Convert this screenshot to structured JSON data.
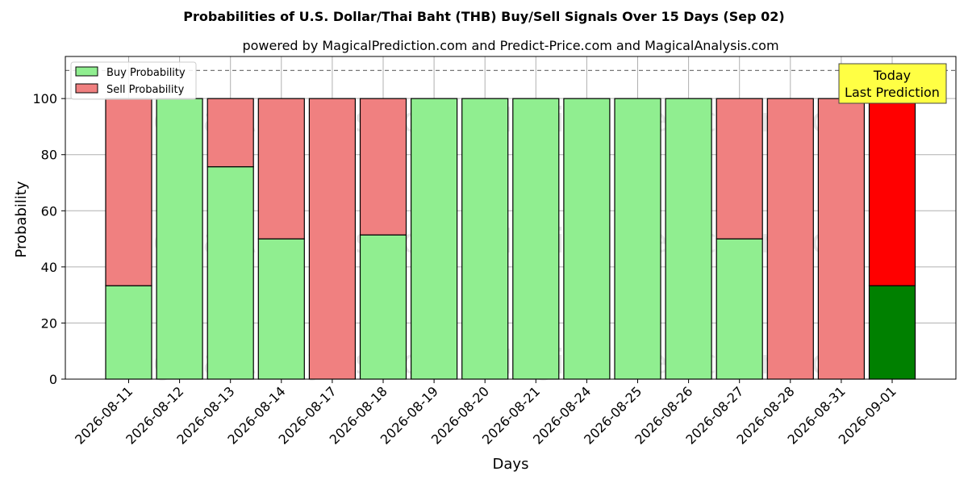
{
  "chart_data": {
    "type": "bar",
    "stacked": true,
    "title": "Probabilities of U.S. Dollar/Thai Baht (THB) Buy/Sell Signals Over 15 Days (Sep 02)",
    "subtitle": "powered by MagicalPrediction.com and Predict-Price.com and MagicalAnalysis.com",
    "xlabel": "Days",
    "ylabel": "Probability",
    "ylim": [
      0,
      115
    ],
    "yticks": [
      0,
      20,
      40,
      60,
      80,
      100
    ],
    "reference_line": 110,
    "grid": true,
    "legend_position": "top-left",
    "categories": [
      "2026-08-11",
      "2026-08-12",
      "2026-08-13",
      "2026-08-14",
      "2026-08-17",
      "2026-08-18",
      "2026-08-19",
      "2026-08-20",
      "2026-08-21",
      "2026-08-24",
      "2026-08-25",
      "2026-08-26",
      "2026-08-27",
      "2026-08-28",
      "2026-08-31",
      "2026-09-01"
    ],
    "series": [
      {
        "name": "Buy Probability",
        "color": "#90ee90",
        "values": [
          33.3,
          100,
          75.7,
          50,
          0,
          51.4,
          100,
          100,
          100,
          100,
          100,
          100,
          50,
          0,
          0,
          33.3
        ]
      },
      {
        "name": "Sell Probability",
        "color": "#f08080",
        "values": [
          66.7,
          0,
          24.3,
          50,
          100,
          48.6,
          0,
          0,
          0,
          0,
          0,
          0,
          50,
          100,
          100,
          66.7
        ]
      }
    ],
    "highlight": {
      "index": 15,
      "buy_color": "#008000",
      "sell_color": "#ff0000"
    },
    "annotation": {
      "line1": "Today",
      "line2": "Last Prediction",
      "color": "#ffff44"
    },
    "watermarks": [
      "MagicalAnalysis.com",
      "MagicalPrediction.com"
    ]
  }
}
